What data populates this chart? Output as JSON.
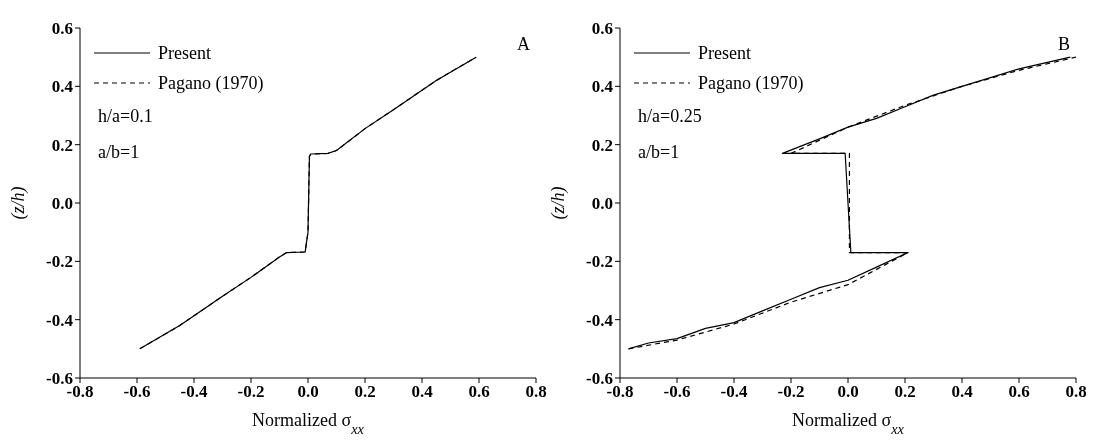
{
  "chart_data": [
    {
      "type": "line",
      "xlabel": "Normalized σ$_{xx}$",
      "ylabel": "(z/h)",
      "annotations": [
        "A",
        "h/a=0.1",
        "a/b=1"
      ],
      "xlim": [
        -0.8,
        0.8
      ],
      "xticks": [
        {
          "value": -0.8,
          "label": "-0.8"
        },
        {
          "value": -0.6,
          "label": "-0.6"
        },
        {
          "value": -0.4,
          "label": "-0.4"
        },
        {
          "value": -0.2,
          "label": "-0.2"
        },
        {
          "value": 0,
          "label": "0.0"
        },
        {
          "value": 0.2,
          "label": "0.2"
        },
        {
          "value": 0.4,
          "label": "0.4"
        },
        {
          "value": 0.6,
          "label": "0.6"
        },
        {
          "value": 0.8,
          "label": "0.8"
        }
      ],
      "ylim": [
        -0.6,
        0.6
      ],
      "yticks": [
        {
          "value": -0.6,
          "label": "-0.6"
        },
        {
          "value": -0.4,
          "label": "-0.4"
        },
        {
          "value": -0.2,
          "label": "-0.2"
        },
        {
          "value": 0,
          "label": "0.0"
        },
        {
          "value": 0.2,
          "label": "0.2"
        },
        {
          "value": 0.4,
          "label": "0.4"
        },
        {
          "value": 0.6,
          "label": "0.6"
        }
      ],
      "legend": "top left",
      "grid": false,
      "marker": "none",
      "series": [
        {
          "name": "Present",
          "color": "#000000",
          "line_style": "solid",
          "x": [
            -0.59,
            -0.45,
            -0.3,
            -0.2,
            -0.1,
            -0.075,
            -0.01,
            0.0,
            0.005,
            0.01,
            0.07,
            0.1,
            0.2,
            0.3,
            0.45,
            0.59
          ],
          "values": [
            -0.5,
            -0.42,
            -0.32,
            -0.255,
            -0.185,
            -0.17,
            -0.168,
            -0.1,
            0.16,
            0.168,
            0.17,
            0.18,
            0.255,
            0.32,
            0.42,
            0.5
          ]
        },
        {
          "name": "Pagano (1970)",
          "color": "#000000",
          "line_style": "dashed",
          "x": [
            -0.59,
            -0.45,
            -0.3,
            -0.2,
            -0.1,
            -0.075,
            -0.01,
            0.0,
            0.005,
            0.01,
            0.07,
            0.1,
            0.2,
            0.3,
            0.45,
            0.59
          ],
          "values": [
            -0.5,
            -0.42,
            -0.32,
            -0.255,
            -0.185,
            -0.17,
            -0.168,
            -0.1,
            0.16,
            0.168,
            0.17,
            0.18,
            0.255,
            0.32,
            0.42,
            0.5
          ]
        }
      ]
    },
    {
      "type": "line",
      "xlabel": "Normalized σ$_{xx}$",
      "ylabel": "(z/h)",
      "annotations": [
        "B",
        "h/a=0.25",
        "a/b=1"
      ],
      "xlim": [
        -0.8,
        0.8
      ],
      "xticks": [
        {
          "value": -0.8,
          "label": "-0.8"
        },
        {
          "value": -0.6,
          "label": "-0.6"
        },
        {
          "value": -0.4,
          "label": "-0.4"
        },
        {
          "value": -0.2,
          "label": "-0.2"
        },
        {
          "value": 0,
          "label": "0.0"
        },
        {
          "value": 0.2,
          "label": "0.2"
        },
        {
          "value": 0.4,
          "label": "0.4"
        },
        {
          "value": 0.6,
          "label": "0.6"
        },
        {
          "value": 0.8,
          "label": "0.8"
        }
      ],
      "ylim": [
        -0.6,
        0.6
      ],
      "yticks": [
        {
          "value": -0.6,
          "label": "-0.6"
        },
        {
          "value": -0.4,
          "label": "-0.4"
        },
        {
          "value": -0.2,
          "label": "-0.2"
        },
        {
          "value": 0,
          "label": "0.0"
        },
        {
          "value": 0.2,
          "label": "0.2"
        },
        {
          "value": 0.4,
          "label": "0.4"
        },
        {
          "value": 0.6,
          "label": "0.6"
        }
      ],
      "legend": "top left",
      "grid": false,
      "marker": "none",
      "series": [
        {
          "name": "Present",
          "color": "#000000",
          "line_style": "solid",
          "x": [
            -0.77,
            -0.7,
            -0.6,
            -0.5,
            -0.4,
            -0.3,
            -0.2,
            -0.1,
            0.0,
            0.1,
            0.21,
            0.01,
            -0.01,
            -0.23,
            -0.1,
            0.0,
            0.1,
            0.2,
            0.3,
            0.4,
            0.5,
            0.6,
            0.78
          ],
          "values": [
            -0.5,
            -0.48,
            -0.465,
            -0.43,
            -0.41,
            -0.37,
            -0.33,
            -0.29,
            -0.265,
            -0.22,
            -0.17,
            -0.17,
            0.17,
            0.17,
            0.22,
            0.26,
            0.29,
            0.33,
            0.37,
            0.4,
            0.43,
            0.46,
            0.5
          ]
        },
        {
          "name": "Pagano (1970)",
          "color": "#000000",
          "line_style": "dashed",
          "x": [
            -0.77,
            -0.6,
            -0.4,
            -0.2,
            0.0,
            0.21,
            0.005,
            0.005,
            -0.2,
            0.0,
            0.2,
            0.4,
            0.6,
            0.8
          ],
          "values": [
            -0.5,
            -0.47,
            -0.415,
            -0.34,
            -0.28,
            -0.17,
            -0.17,
            0.17,
            0.17,
            0.26,
            0.335,
            0.4,
            0.455,
            0.5
          ]
        }
      ]
    }
  ]
}
